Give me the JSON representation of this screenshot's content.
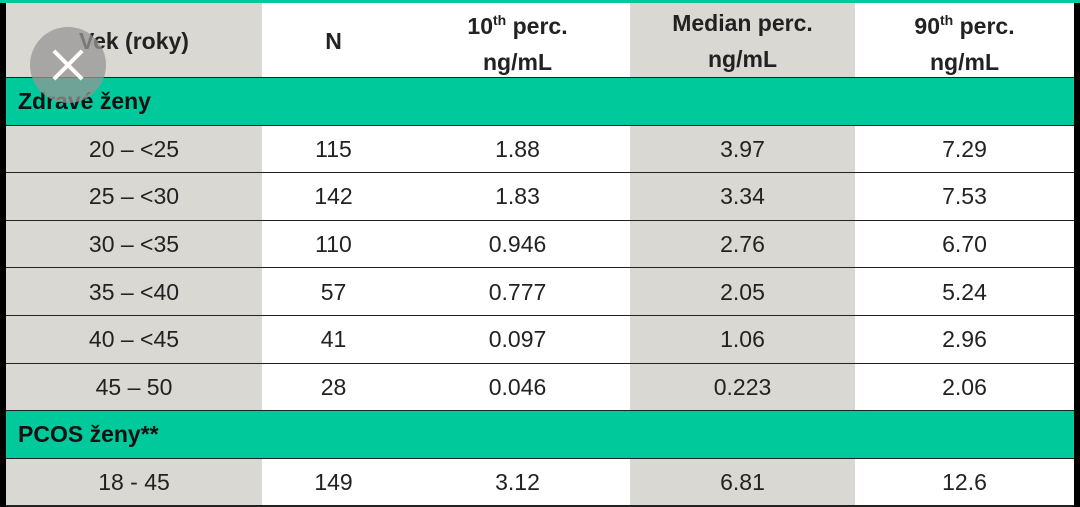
{
  "table": {
    "header": [
      {
        "lines": [
          [
            "Vek (roky)"
          ]
        ]
      },
      {
        "lines": [
          [
            "N"
          ]
        ]
      },
      {
        "lines": [
          [
            "10",
            "th",
            " perc."
          ],
          [
            "ng/mL"
          ]
        ]
      },
      {
        "lines": [
          [
            "Median perc."
          ],
          [
            "ng/mL"
          ]
        ]
      },
      {
        "lines": [
          [
            "90",
            "th",
            " perc."
          ],
          [
            "ng/mL"
          ]
        ]
      }
    ],
    "sections": [
      {
        "title": "Zdravé ženy",
        "rows": [
          [
            "20 – <25",
            "115",
            "1.88",
            "3.97",
            "7.29"
          ],
          [
            "25 – <30",
            "142",
            "1.83",
            "3.34",
            "7.53"
          ],
          [
            "30 – <35",
            "110",
            "0.946",
            "2.76",
            "6.70"
          ],
          [
            "35 – <40",
            "57",
            "0.777",
            "2.05",
            "5.24"
          ],
          [
            "40 – <45",
            "41",
            "0.097",
            "1.06",
            "2.96"
          ],
          [
            "45 – 50",
            "28",
            "0.046",
            "0.223",
            "2.06"
          ]
        ]
      },
      {
        "title": "PCOS ženy**",
        "rows": [
          [
            "18 - 45",
            "149",
            "3.12",
            "6.81",
            "12.6"
          ]
        ]
      }
    ]
  }
}
